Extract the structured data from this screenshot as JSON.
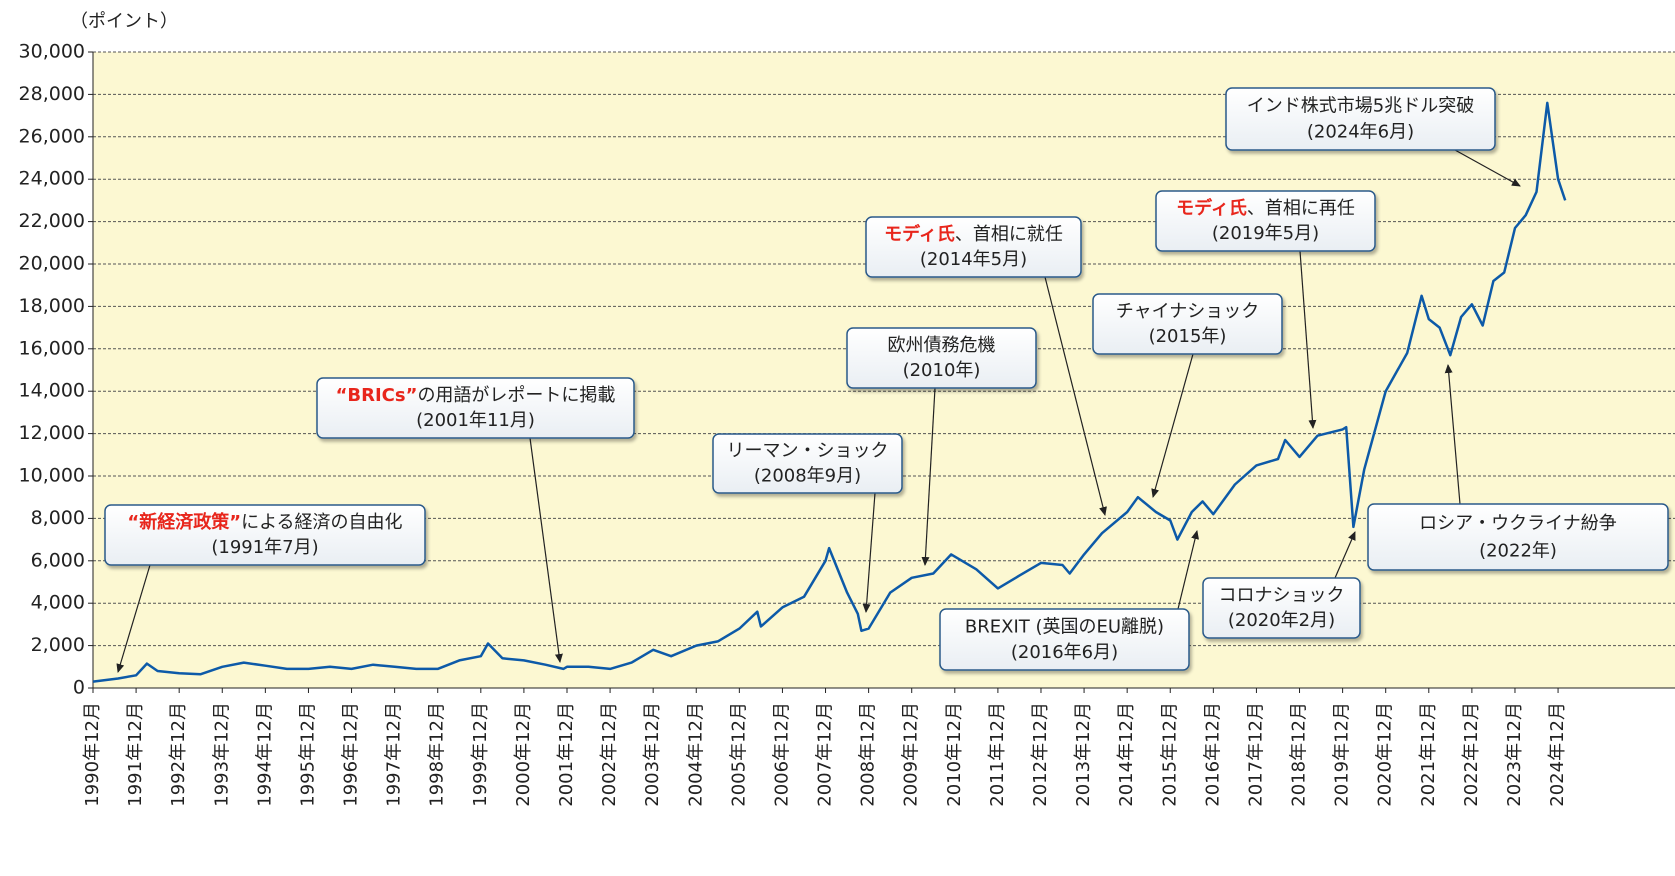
{
  "chart_data": {
    "type": "line",
    "y_label": "（ポイント）",
    "color": "#0d5aa8",
    "grid": true,
    "ylim": [
      0,
      30000
    ],
    "yticks": [
      0,
      {
        "value": 2000,
        "label": "2,000"
      },
      {
        "value": 4000,
        "label": "4,000"
      },
      {
        "value": 6000,
        "label": "6,000"
      },
      {
        "value": 8000,
        "label": "8,000"
      },
      {
        "value": 10000,
        "label": "10,000"
      },
      {
        "value": 12000,
        "label": "12,000"
      },
      {
        "value": 14000,
        "label": "14,000"
      },
      {
        "value": 16000,
        "label": "16,000"
      },
      {
        "value": 18000,
        "label": "18,000"
      },
      {
        "value": 20000,
        "label": "20,000"
      },
      {
        "value": 22000,
        "label": "22,000"
      },
      {
        "value": 24000,
        "label": "24,000"
      },
      {
        "value": 26000,
        "label": "26,000"
      },
      {
        "value": 28000,
        "label": "28,000"
      },
      {
        "value": 30000,
        "label": "30,000"
      }
    ],
    "xticks": [
      "1990年12月",
      "1991年12月",
      "1992年12月",
      "1993年12月",
      "1994年12月",
      "1995年12月",
      "1996年12月",
      "1997年12月",
      "1998年12月",
      "1999年12月",
      "2000年12月",
      "2001年12月",
      "2002年12月",
      "2003年12月",
      "2004年12月",
      "2005年12月",
      "2006年12月",
      "2007年12月",
      "2008年12月",
      "2009年12月",
      "2010年12月",
      "2011年12月",
      "2012年12月",
      "2013年12月",
      "2014年12月",
      "2015年12月",
      "2016年12月",
      "2017年12月",
      "2018年12月",
      "2019年12月",
      "2020年12月",
      "2021年12月",
      "2022年12月",
      "2023年12月",
      "2024年12月"
    ],
    "x": [
      "1990年12月",
      "1991年7月",
      "1991年12月",
      "1992年3月",
      "1992年6月",
      "1992年12月",
      "1993年6月",
      "1993年12月",
      "1994年6月",
      "1994年12月",
      "1995年6月",
      "1995年12月",
      "1996年6月",
      "1996年12月",
      "1997年6月",
      "1997年12月",
      "1998年6月",
      "1998年12月",
      "1999年6月",
      "1999年12月",
      "2000年2月",
      "2000年6月",
      "2000年12月",
      "2001年6月",
      "2001年11月",
      "2001年12月",
      "2002年6月",
      "2002年12月",
      "2003年6月",
      "2003年12月",
      "2004年5月",
      "2004年12月",
      "2005年6月",
      "2005年12月",
      "2006年5月",
      "2006年6月",
      "2006年12月",
      "2007年6月",
      "2007年12月",
      "2008年1月",
      "2008年6月",
      "2008年9月",
      "2008年10月",
      "2008年12月",
      "2009年6月",
      "2009年12月",
      "2010年6月",
      "2010年11月",
      "2011年6月",
      "2011年12月",
      "2012年6月",
      "2012年12月",
      "2013年6月",
      "2013年8月",
      "2013年12月",
      "2014年5月",
      "2014年12月",
      "2015年3月",
      "2015年8月",
      "2015年12月",
      "2016年2月",
      "2016年6月",
      "2016年9月",
      "2016年12月",
      "2017年6月",
      "2017年12月",
      "2018年6月",
      "2018年8月",
      "2018年12月",
      "2019年5月",
      "2019年12月",
      "2020年1月",
      "2020年3月",
      "2020年6月",
      "2020年12月",
      "2021年6月",
      "2021年10月",
      "2021年12月",
      "2022年3月",
      "2022年6月",
      "2022年9月",
      "2022年12月",
      "2023年3月",
      "2023年6月",
      "2023年9月",
      "2023年12月",
      "2024年3月",
      "2024年6月",
      "2024年9月",
      "2024年12月",
      "2025年2月"
    ],
    "values": [
      300,
      450,
      600,
      1150,
      800,
      700,
      650,
      1000,
      1200,
      1050,
      900,
      900,
      1000,
      900,
      1100,
      1000,
      900,
      900,
      1300,
      1500,
      2100,
      1400,
      1300,
      1100,
      900,
      1000,
      1000,
      900,
      1200,
      1800,
      1500,
      2000,
      2200,
      2800,
      3600,
      2900,
      3800,
      4300,
      6000,
      6600,
      4500,
      3500,
      2700,
      2800,
      4500,
      5200,
      5400,
      6300,
      5600,
      4700,
      5300,
      5900,
      5800,
      5400,
      6300,
      7300,
      8300,
      9000,
      8300,
      7900,
      7000,
      8300,
      8800,
      8200,
      9600,
      10500,
      10800,
      11700,
      10900,
      11900,
      12200,
      12300,
      7600,
      10300,
      14000,
      15800,
      18500,
      17400,
      17000,
      15700,
      17500,
      18100,
      17100,
      19200,
      19600,
      21700,
      22300,
      23400,
      27600,
      24000,
      23000
    ],
    "annotations": [
      {
        "highlight": "“新経済政策”",
        "text": "による経済の自由化",
        "date": "(1991年7月)"
      },
      {
        "highlight": "“BRICs”",
        "text": "の用語がレポートに掲載",
        "date": "(2001年11月)"
      },
      {
        "text": "リーマン・ショック",
        "date": "(2008年9月)"
      },
      {
        "text": "欧州債務危機",
        "date": "(2010年)"
      },
      {
        "highlight": "モディ氏",
        "text": "、首相に就任",
        "date": "(2014年5月)"
      },
      {
        "text": "チャイナショック",
        "date": "(2015年)"
      },
      {
        "text": "BREXIT (英国のEU離脱)",
        "date": "(2016年6月)"
      },
      {
        "highlight": "モディ氏",
        "text": "、首相に再任",
        "date": "(2019年5月)"
      },
      {
        "text": "インド株式市場5兆ドル突破",
        "date": "(2024年6月)"
      },
      {
        "text": "コロナショック",
        "date": "(2020年2月)"
      },
      {
        "text": "ロシア・ウクライナ紛争",
        "date": "(2022年)"
      }
    ]
  }
}
